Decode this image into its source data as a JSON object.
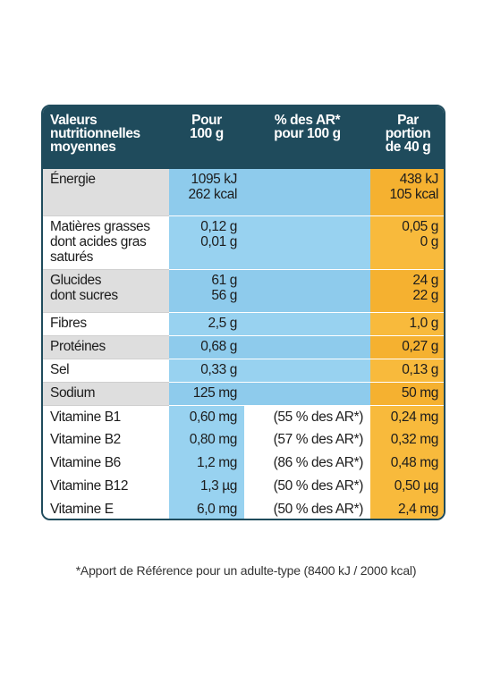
{
  "table": {
    "header": [
      [
        "Valeurs",
        "nutritionnelles",
        "moyennes"
      ],
      [
        "Pour",
        "100 g"
      ],
      [
        "% des AR*",
        "pour 100 g"
      ],
      [
        "Par",
        "portion",
        "de 40 g"
      ]
    ],
    "rows": [
      {
        "nutrient": [
          "Énergie"
        ],
        "per_100g": [
          "1095 kJ",
          "262 kcal"
        ],
        "portion": [
          "438 kJ",
          "105 kcal"
        ]
      },
      {
        "nutrient": [
          "Matières grasses",
          "dont acides gras",
          "saturés"
        ],
        "per_100g": [
          "0,12 g",
          "0,01 g"
        ],
        "portion": [
          "0,05 g",
          "0 g"
        ]
      },
      {
        "nutrient": [
          "Glucides",
          "dont sucres"
        ],
        "per_100g": [
          "61 g",
          "56 g"
        ],
        "portion": [
          "24 g",
          "22 g"
        ]
      },
      {
        "nutrient": [
          "Fibres"
        ],
        "per_100g": [
          "2,5 g"
        ],
        "portion": [
          "1,0 g"
        ]
      },
      {
        "nutrient": [
          "Protéines"
        ],
        "per_100g": [
          "0,68 g"
        ],
        "portion": [
          "0,27 g"
        ]
      },
      {
        "nutrient": [
          "Sel"
        ],
        "per_100g": [
          "0,33 g"
        ],
        "portion": [
          "0,13 g"
        ]
      },
      {
        "nutrient": [
          "Sodium"
        ],
        "per_100g": [
          "125 mg"
        ],
        "portion": [
          "50 mg"
        ]
      },
      {
        "nutrient": [
          "Vitamine B1"
        ],
        "per_100g": [
          "0,60 mg"
        ],
        "ar": [
          "(55 % des AR*)"
        ],
        "portion": [
          "0,24 mg"
        ]
      },
      {
        "nutrient": [
          "Vitamine B2"
        ],
        "per_100g": [
          "0,80 mg"
        ],
        "ar": [
          "(57 % des AR*)"
        ],
        "portion": [
          "0,32 mg"
        ]
      },
      {
        "nutrient": [
          "Vitamine B6"
        ],
        "per_100g": [
          "1,2 mg"
        ],
        "ar": [
          "(86 % des AR*)"
        ],
        "portion": [
          "0,48 mg"
        ]
      },
      {
        "nutrient": [
          "Vitamine B12"
        ],
        "per_100g": [
          "1,3 µg"
        ],
        "ar": [
          "(50 % des AR*)"
        ],
        "portion": [
          "0,50 µg"
        ]
      },
      {
        "nutrient": [
          "Vitamine E"
        ],
        "per_100g": [
          "6,0 mg"
        ],
        "ar": [
          "(50 % des AR*)"
        ],
        "portion": [
          "2,4 mg"
        ]
      }
    ]
  },
  "footnote": "*Apport de Référence pour un adulte-type (8400 kJ / 2000 kcal)"
}
